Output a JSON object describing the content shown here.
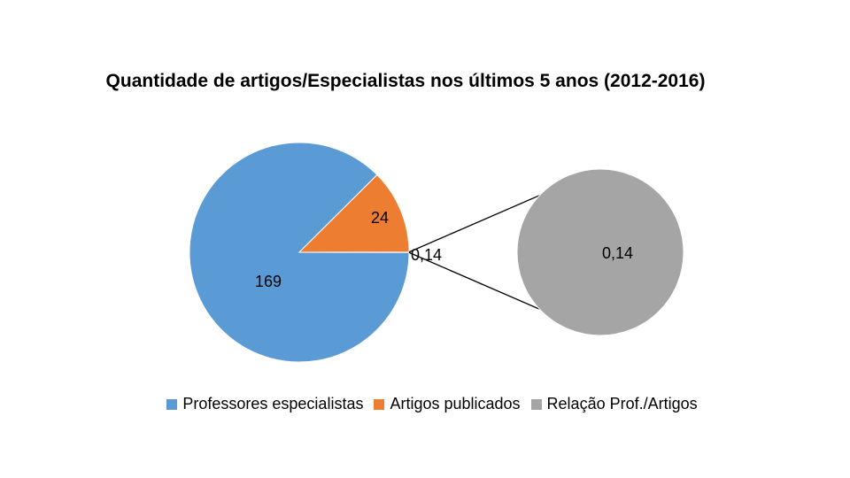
{
  "chart_data": {
    "type": "pie",
    "variant": "pie-of-pie",
    "title": "Quantidade de artigos/Especialistas nos últimos 5 anos (2012-2016)",
    "main_pie": {
      "slices": [
        {
          "name": "Professores especialistas",
          "value": 169,
          "label": "169",
          "color": "#5b9bd5"
        },
        {
          "name": "Artigos publicados",
          "value": 24,
          "label": "24",
          "color": "#ed7d31"
        },
        {
          "name": "Relação Prof./Artigos",
          "value": 0.14,
          "label": "0,14",
          "color": "#a5a5a5"
        }
      ]
    },
    "secondary_pie": {
      "slices": [
        {
          "name": "Relação Prof./Artigos",
          "value": 0.14,
          "label": "0,14",
          "color": "#a5a5a5"
        }
      ]
    },
    "legend_position": "bottom",
    "legend": [
      {
        "label": "Professores especialistas",
        "color": "#5b9bd5"
      },
      {
        "label": "Artigos publicados",
        "color": "#ed7d31"
      },
      {
        "label": "Relação Prof./Artigos",
        "color": "#a5a5a5"
      }
    ]
  }
}
